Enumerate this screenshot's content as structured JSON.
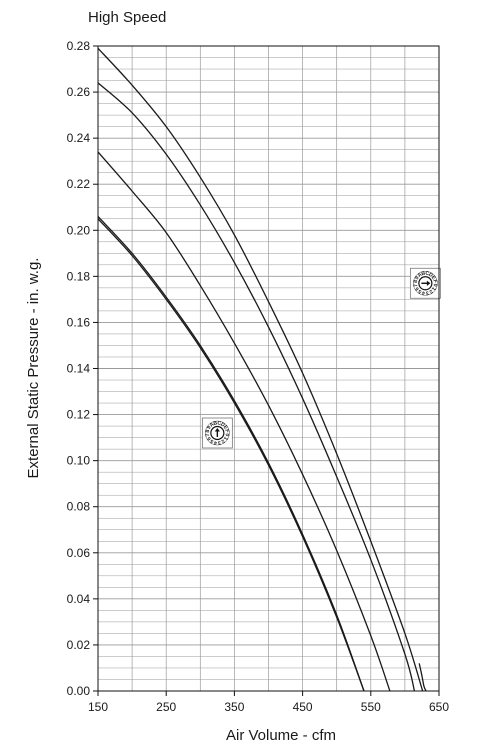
{
  "chart_data": {
    "type": "line",
    "title": "High Speed",
    "xlabel": "Air Volume - cfm",
    "ylabel": "External Static Pressure - in. w.g.",
    "xlim": [
      150,
      650
    ],
    "ylim": [
      0,
      0.28
    ],
    "x_ticks": [
      "150",
      "250",
      "350",
      "450",
      "550",
      "650"
    ],
    "y_ticks": [
      "0.00",
      "0.02",
      "0.04",
      "0.06",
      "0.08",
      "0.10",
      "0.12",
      "0.14",
      "0.16",
      "0.18",
      "0.20",
      "0.22",
      "0.24",
      "0.26",
      "0.28"
    ],
    "grid": true,
    "colors": {
      "line": "#1a1a1a",
      "grid": "#9a9a9a",
      "frame": "#111111"
    },
    "series": [
      {
        "x": [
          150,
          200,
          250,
          300,
          350,
          400,
          450,
          500,
          540
        ],
        "y": [
          0.205,
          0.189,
          0.17,
          0.149,
          0.125,
          0.098,
          0.067,
          0.032,
          0.0
        ]
      },
      {
        "x": [
          150,
          200,
          250,
          300,
          350,
          400,
          450,
          500,
          540
        ],
        "y": [
          0.206,
          0.19,
          0.171,
          0.15,
          0.126,
          0.099,
          0.068,
          0.033,
          0.0
        ]
      },
      {
        "x": [
          150,
          200,
          250,
          300,
          350,
          400,
          450,
          500,
          550,
          578
        ],
        "y": [
          0.234,
          0.217,
          0.199,
          0.176,
          0.151,
          0.124,
          0.094,
          0.061,
          0.024,
          0.0
        ]
      },
      {
        "x": [
          150,
          200,
          250,
          300,
          350,
          400,
          450,
          500,
          550,
          600,
          614
        ],
        "y": [
          0.264,
          0.251,
          0.233,
          0.211,
          0.186,
          0.158,
          0.127,
          0.093,
          0.057,
          0.016,
          0.0
        ]
      },
      {
        "x": [
          150,
          200,
          250,
          300,
          350,
          400,
          450,
          500,
          550,
          600,
          626
        ],
        "y": [
          0.279,
          0.263,
          0.245,
          0.223,
          0.198,
          0.169,
          0.138,
          0.103,
          0.065,
          0.025,
          0.0
        ]
      },
      {
        "x": [
          621,
          624,
          626,
          628,
          631
        ],
        "y": [
          0.012,
          0.008,
          0.005,
          0.002,
          0.0
        ]
      }
    ],
    "annotations": [
      {
        "type": "rotary-switch-icon",
        "x": 630,
        "y": 0.177,
        "arrow": "right",
        "dial_label": "ABCDEF0123456789"
      },
      {
        "type": "rotary-switch-icon",
        "x": 325,
        "y": 0.112,
        "arrow": "up",
        "dial_label": "ABCDEF0123456789"
      }
    ]
  }
}
